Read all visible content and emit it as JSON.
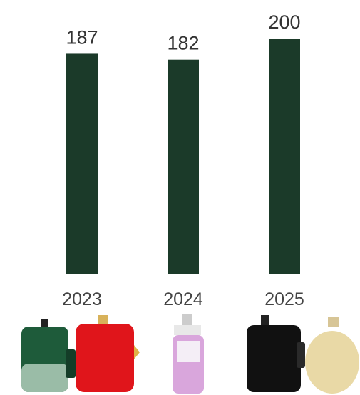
{
  "chart_data": {
    "type": "bar",
    "categories": [
      "2023",
      "2024",
      "2025"
    ],
    "values": [
      187,
      182,
      200
    ],
    "color": "#1b3a29",
    "ylim": [
      0,
      200
    ]
  }
}
